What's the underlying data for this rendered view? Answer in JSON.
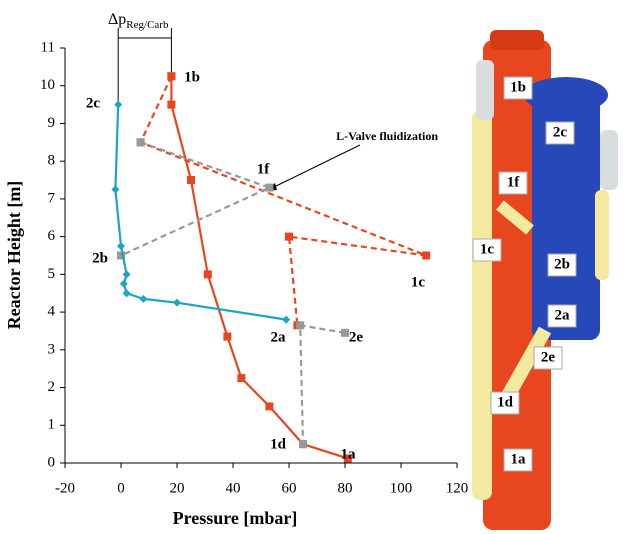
{
  "chart_data": {
    "type": "line",
    "x_label": "Pressure [mbar]",
    "y_label": "Reactor Height  [m]",
    "xlim": [
      -20,
      120
    ],
    "xticks": [
      -20,
      0,
      20,
      40,
      60,
      80,
      100,
      120
    ],
    "ylim": [
      0,
      11
    ],
    "yticks": [
      0,
      1,
      2,
      3,
      4,
      5,
      6,
      7,
      8,
      9,
      10,
      11
    ],
    "series": [
      {
        "color": "#e8461e",
        "dash": false,
        "marker": "square",
        "x": [
          81,
          65,
          53,
          43,
          38,
          31,
          25,
          18,
          18
        ],
        "y": [
          0.12,
          0.5,
          1.5,
          2.25,
          3.35,
          5,
          7.5,
          9.5,
          10.25
        ]
      },
      {
        "color": "#e8461e",
        "dash": true,
        "marker": "square",
        "x": [
          18,
          7,
          109,
          60,
          63
        ],
        "y": [
          10.25,
          8.5,
          5.5,
          6,
          3.65
        ]
      },
      {
        "color": "#999999",
        "dash": true,
        "marker": "square",
        "x": [
          7,
          53,
          0,
          null,
          80,
          64,
          65
        ],
        "y": [
          8.5,
          7.3,
          5.5,
          null,
          3.45,
          3.65,
          0.5
        ]
      },
      {
        "color": "#1ba3c9",
        "dash": false,
        "marker": "diamond",
        "x": [
          59,
          20,
          8,
          2,
          1,
          2,
          0,
          -2,
          -1
        ],
        "y": [
          3.8,
          4.25,
          4.35,
          4.5,
          4.75,
          5,
          5.75,
          7.25,
          9.5
        ]
      }
    ],
    "point_labels": [
      "1a",
      "1b",
      "1c",
      "1d",
      "1f",
      "2a",
      "2b",
      "2c",
      "2e"
    ],
    "delta_label": "Δp",
    "delta_subscript": "Reg/Carb",
    "annotation": "L-Valve fluidization"
  },
  "diagram": {
    "labels": [
      "1b",
      "2c",
      "1f",
      "1c",
      "2b",
      "2a",
      "2e",
      "1d",
      "1a"
    ]
  }
}
